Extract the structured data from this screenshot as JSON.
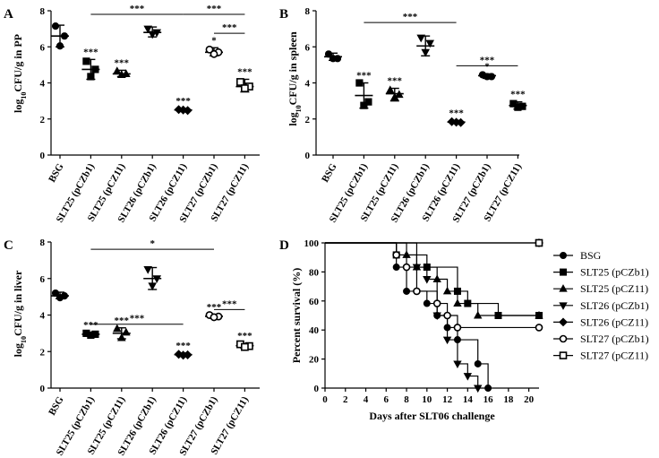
{
  "chart_data": [
    {
      "panel": "A",
      "type": "scatter",
      "ylabel_main": "log",
      "ylabel_sub": "10",
      "ylabel_rest": "CFU/g in PP",
      "ylim": [
        0,
        8
      ],
      "yticks": [
        "0",
        "2",
        "4",
        "6",
        "8"
      ],
      "categories": [
        "BSG",
        "SLT25 (pCZb1)",
        "SLT25 (pCZ11)",
        "SLT26 (pCZb1)",
        "SLT26 (pCZ11)",
        "SLT27 (pCZb1)",
        "SLT27 (pCZ11)"
      ],
      "groups": [
        {
          "marker": "circle-filled",
          "points": [
            7.15,
            6.6,
            6.05
          ],
          "mean": 6.6,
          "sd_low": 6.0,
          "sd_high": 7.2,
          "sig": ""
        },
        {
          "marker": "square-filled",
          "points": [
            5.2,
            4.75,
            4.35
          ],
          "mean": 4.75,
          "sd_low": 4.2,
          "sd_high": 5.3,
          "sig": "***"
        },
        {
          "marker": "triangle-filled",
          "points": [
            4.65,
            4.5,
            4.45
          ],
          "mean": 4.5,
          "sd_low": 4.35,
          "sd_high": 4.7,
          "sig": "***"
        },
        {
          "marker": "triangle-down-filled",
          "points": [
            7.0,
            6.8,
            6.7
          ],
          "mean": 6.8,
          "sd_low": 6.55,
          "sd_high": 7.1,
          "sig": ""
        },
        {
          "marker": "diamond-filled",
          "points": [
            2.52,
            2.47,
            2.5
          ],
          "mean": 2.5,
          "sd_low": 2.42,
          "sd_high": 2.58,
          "sig": "***"
        },
        {
          "marker": "circle-open",
          "points": [
            5.85,
            5.7,
            5.6
          ],
          "mean": 5.7,
          "sd_low": 5.5,
          "sd_high": 5.95,
          "sig": "*"
        },
        {
          "marker": "square-open",
          "points": [
            4.05,
            3.8,
            3.7
          ],
          "mean": 3.8,
          "sd_low": 3.5,
          "sd_high": 4.2,
          "sig": "***"
        }
      ],
      "brackets": [
        {
          "from": 2,
          "to": 5,
          "value": 7.8,
          "label": "***"
        },
        {
          "from": 5,
          "to": 7,
          "value": 7.8,
          "label": "***"
        },
        {
          "from": 6,
          "to": 7,
          "value": 6.75,
          "label": "***"
        }
      ]
    },
    {
      "panel": "B",
      "type": "scatter",
      "ylabel_main": "log",
      "ylabel_sub": "10",
      "ylabel_rest": "CFU/g in spleen",
      "ylim": [
        0,
        8
      ],
      "yticks": [
        "0",
        "2",
        "4",
        "6",
        "8"
      ],
      "categories": [
        "BSG",
        "SLT25 (pCZb1)",
        "SLT25 (pCZ11)",
        "SLT26 (pCZb1)",
        "SLT26 (pCZ11)",
        "SLT27 (pCZb1)",
        "SLT27 (pCZ11)"
      ],
      "groups": [
        {
          "marker": "circle-filled",
          "points": [
            5.6,
            5.35,
            5.35
          ],
          "mean": 5.45,
          "sd_low": 5.25,
          "sd_high": 5.65,
          "sig": ""
        },
        {
          "marker": "square-filled",
          "points": [
            4.0,
            2.95,
            2.75
          ],
          "mean": 3.3,
          "sd_low": 2.6,
          "sd_high": 4.0,
          "sig": "***"
        },
        {
          "marker": "triangle-filled",
          "points": [
            3.6,
            3.35,
            3.2
          ],
          "mean": 3.4,
          "sd_low": 3.0,
          "sd_high": 3.7,
          "sig": "***"
        },
        {
          "marker": "triangle-down-filled",
          "points": [
            6.5,
            6.2,
            5.7
          ],
          "mean": 6.05,
          "sd_low": 5.5,
          "sd_high": 6.6,
          "sig": ""
        },
        {
          "marker": "diamond-filled",
          "points": [
            1.85,
            1.8,
            1.82
          ],
          "mean": 1.83,
          "sd_low": 1.75,
          "sd_high": 1.92,
          "sig": "***"
        },
        {
          "marker": "circle-filled",
          "points": [
            4.45,
            4.35,
            4.35
          ],
          "mean": 4.4,
          "sd_low": 4.25,
          "sd_high": 4.5,
          "sig": "*"
        },
        {
          "marker": "square-filled",
          "points": [
            2.85,
            2.7,
            2.65
          ],
          "mean": 2.75,
          "sd_low": 2.55,
          "sd_high": 2.95,
          "sig": "***"
        }
      ],
      "brackets": [
        {
          "from": 2,
          "to": 5,
          "value": 7.35,
          "label": "***"
        },
        {
          "from": 5,
          "to": 7,
          "value": 4.95,
          "label": "***"
        }
      ]
    },
    {
      "panel": "C",
      "type": "scatter",
      "ylabel_main": "log",
      "ylabel_sub": "10",
      "ylabel_rest": "CFU/g in liver",
      "ylim": [
        0,
        8
      ],
      "yticks": [
        "0",
        "2",
        "4",
        "6",
        "8"
      ],
      "categories": [
        "BSG",
        "SLT25 (pCZb1)",
        "SLT25 (pCZ11)",
        "SLT26 (pCZb1)",
        "SLT26 (pCZ11)",
        "SLT27 (pCZb1)",
        "SLT27 (pCZ11)"
      ],
      "groups": [
        {
          "marker": "circle-filled",
          "points": [
            5.2,
            5.05,
            4.95
          ],
          "mean": 5.05,
          "sd_low": 4.9,
          "sd_high": 5.25,
          "sig": ""
        },
        {
          "marker": "square-filled",
          "points": [
            3.0,
            2.95,
            2.9
          ],
          "mean": 2.95,
          "sd_low": 2.85,
          "sd_high": 3.05,
          "sig": "***"
        },
        {
          "marker": "triangle-filled",
          "points": [
            3.25,
            3.05,
            2.75
          ],
          "mean": 3.0,
          "sd_low": 2.7,
          "sd_high": 3.3,
          "sig": "***"
        },
        {
          "marker": "triangle-down-filled",
          "points": [
            6.5,
            6.0,
            5.6
          ],
          "mean": 6.0,
          "sd_low": 5.4,
          "sd_high": 6.6,
          "sig": ""
        },
        {
          "marker": "diamond-filled",
          "points": [
            1.85,
            1.82,
            1.8
          ],
          "mean": 1.83,
          "sd_low": 1.75,
          "sd_high": 1.92,
          "sig": "***"
        },
        {
          "marker": "circle-open",
          "points": [
            4.0,
            3.92,
            3.88
          ],
          "mean": 3.93,
          "sd_low": 3.82,
          "sd_high": 4.02,
          "sig": "***"
        },
        {
          "marker": "square-open",
          "points": [
            2.4,
            2.3,
            2.25
          ],
          "mean": 2.32,
          "sd_low": 2.18,
          "sd_high": 2.45,
          "sig": "***"
        }
      ],
      "brackets": [
        {
          "from": 2,
          "to": 6,
          "value": 7.6,
          "label": "*"
        },
        {
          "from": 2,
          "to": 5,
          "value": 3.5,
          "label": "***"
        },
        {
          "from": 6,
          "to": 7,
          "value": 4.3,
          "label": "***"
        }
      ]
    },
    {
      "panel": "D",
      "type": "line",
      "style": "step",
      "xlabel": "Days after SLT06 challenge",
      "ylabel": "Percent survival (%)",
      "xlim": [
        0,
        21
      ],
      "ylim": [
        0,
        100
      ],
      "xticks": [
        "0",
        "2",
        "4",
        "6",
        "8",
        "10",
        "12",
        "14",
        "16",
        "18",
        "20"
      ],
      "yticks": [
        "0",
        "20",
        "40",
        "60",
        "80",
        "100"
      ],
      "series": [
        {
          "name": "BSG",
          "marker": "circle-filled",
          "x": [
            0,
            7,
            8,
            10,
            11,
            12,
            13,
            15,
            16
          ],
          "y": [
            100,
            83.3,
            66.7,
            58.3,
            50,
            41.7,
            33.3,
            16.7,
            0
          ]
        },
        {
          "name": "SLT25 (pCZb1)",
          "marker": "square-filled",
          "x": [
            0,
            7,
            10,
            13,
            14,
            17,
            21
          ],
          "y": [
            100,
            91.7,
            83.3,
            66.7,
            58.3,
            50,
            50
          ]
        },
        {
          "name": "SLT25 (pCZ11)",
          "marker": "triangle-filled",
          "x": [
            0,
            8,
            9,
            11,
            12,
            13,
            15,
            21
          ],
          "y": [
            100,
            91.7,
            83.3,
            75,
            66.7,
            58.3,
            50,
            50
          ]
        },
        {
          "name": "SLT26 (pCZb1)",
          "marker": "triangle-down-filled",
          "x": [
            0,
            9,
            10,
            11,
            12,
            13,
            14,
            15
          ],
          "y": [
            100,
            83.3,
            75,
            50,
            33.3,
            16.7,
            8.3,
            0
          ]
        },
        {
          "name": "SLT26 (pCZ11)",
          "marker": "diamond-filled",
          "x": [
            0,
            21
          ],
          "y": [
            100,
            100
          ]
        },
        {
          "name": "SLT27 (pCZb1)",
          "marker": "circle-open",
          "x": [
            0,
            7,
            8,
            9,
            11,
            12,
            13,
            21
          ],
          "y": [
            100,
            91.7,
            83.3,
            66.7,
            58.3,
            50,
            41.7,
            41.7
          ]
        },
        {
          "name": "SLT27 (pCZ11)",
          "marker": "square-open",
          "x": [
            0,
            21
          ],
          "y": [
            100,
            100
          ]
        }
      ]
    }
  ]
}
